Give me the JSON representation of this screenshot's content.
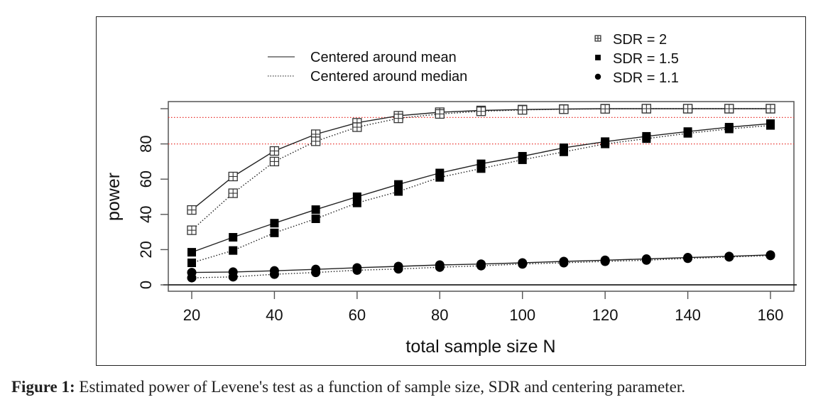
{
  "chart_data": {
    "type": "line",
    "title": "",
    "xlabel": "total sample size N",
    "ylabel": "power",
    "xlim": [
      15,
      166
    ],
    "ylim": [
      -4,
      104
    ],
    "x": [
      20,
      30,
      40,
      50,
      60,
      70,
      80,
      90,
      100,
      110,
      120,
      130,
      140,
      150,
      160
    ],
    "xticks": [
      20,
      40,
      60,
      80,
      100,
      120,
      140,
      160
    ],
    "xtick_labels": [
      "20",
      "40",
      "60",
      "80",
      "100",
      "120",
      "140",
      "160"
    ],
    "yticks": [
      0,
      20,
      40,
      60,
      80,
      100
    ],
    "ytick_labels": [
      "0",
      "20",
      "40",
      "60",
      "80",
      ""
    ],
    "reference_lines": [
      {
        "y": 95,
        "color": "#e8332e",
        "style": "dotted"
      },
      {
        "y": 80,
        "color": "#e8332e",
        "style": "dotted"
      },
      {
        "y": 0,
        "color": "#222222",
        "style": "solid"
      }
    ],
    "grid": false,
    "series": [
      {
        "name": "SDR = 2, centered around mean",
        "sdr": "2",
        "centering": "mean",
        "marker": "square-grid",
        "values": [
          42.5,
          61.5,
          76,
          85.5,
          92,
          96,
          98,
          99,
          99.5,
          99.8,
          100,
          100,
          100,
          100,
          100
        ]
      },
      {
        "name": "SDR = 2, centered around median",
        "sdr": "2",
        "centering": "median",
        "marker": "square-grid",
        "values": [
          31,
          52,
          70,
          81.5,
          89.5,
          94.5,
          97,
          98.5,
          99.3,
          99.7,
          99.9,
          100,
          100,
          100,
          100
        ]
      },
      {
        "name": "SDR = 1.5, centered around mean",
        "sdr": "1.5",
        "centering": "mean",
        "marker": "filled-square",
        "values": [
          18.5,
          27,
          35,
          42.7,
          50,
          57,
          63.5,
          68.7,
          73,
          77.8,
          81.3,
          84.3,
          87,
          89.5,
          91.5
        ]
      },
      {
        "name": "SDR = 1.5, centered around median",
        "sdr": "1.5",
        "centering": "median",
        "marker": "filled-square",
        "values": [
          12.5,
          19.5,
          29.5,
          37.5,
          46.5,
          53,
          61,
          66,
          71,
          75.5,
          80,
          83,
          86,
          88.5,
          90.5
        ]
      },
      {
        "name": "SDR = 1.1, centered around mean",
        "sdr": "1.1",
        "centering": "mean",
        "marker": "filled-circle",
        "values": [
          7,
          7.3,
          8,
          8.8,
          9.7,
          10.5,
          11.3,
          11.8,
          12.5,
          13.3,
          14,
          14.7,
          15.5,
          16.2,
          17
        ]
      },
      {
        "name": "SDR = 1.1, centered around median",
        "sdr": "1.1",
        "centering": "median",
        "marker": "filled-circle",
        "values": [
          4,
          4.5,
          6,
          7,
          8.3,
          9,
          10,
          10.8,
          11.8,
          12.5,
          13.3,
          14,
          15,
          15.8,
          16.6
        ]
      }
    ],
    "legend_lines": {
      "placement": "top-left",
      "entries": [
        {
          "label": "Centered around mean",
          "style": "solid"
        },
        {
          "label": "Centered around median",
          "style": "dotted"
        }
      ]
    },
    "legend_markers": {
      "placement": "top-right",
      "entries": [
        {
          "label": "SDR = 2",
          "marker": "square-grid"
        },
        {
          "label": "SDR = 1.5",
          "marker": "filled-square"
        },
        {
          "label": "SDR = 1.1",
          "marker": "filled-circle"
        }
      ]
    },
    "colors": {
      "line": "#222222",
      "reference": "#e8332e",
      "marker": "#000000"
    }
  },
  "caption": {
    "label": "Figure 1:",
    "text": " Estimated power of Levene's test as a function of sample size, SDR and centering parameter."
  }
}
